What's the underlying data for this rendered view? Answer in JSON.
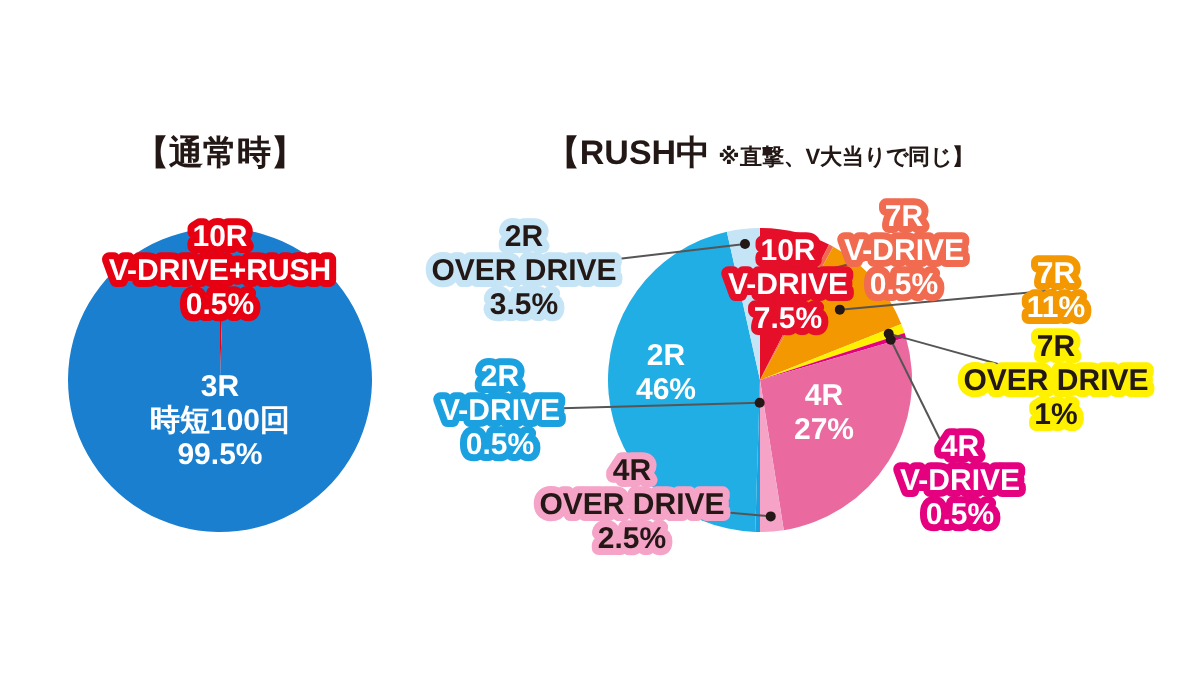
{
  "chart_data": [
    {
      "type": "pie",
      "title": "【通常時】",
      "categories": [
        "10R V-DRIVE+RUSH",
        "3R 時短100回"
      ],
      "values": [
        0.5,
        99.5
      ],
      "colors": [
        "#e60012",
        "#1a7fcf"
      ],
      "value_labels": [
        "0.5%",
        "99.5%"
      ]
    },
    {
      "type": "pie",
      "title": "【RUSH中",
      "subtitle": "※直撃、V大当りで同じ】",
      "categories": [
        "10R V-DRIVE",
        "7R V-DRIVE",
        "7R",
        "7R OVER DRIVE",
        "4R V-DRIVE",
        "4R",
        "4R OVER DRIVE",
        "2R V-DRIVE",
        "2R",
        "2R OVER DRIVE"
      ],
      "values": [
        7.5,
        0.5,
        11,
        1,
        0.5,
        27,
        2.5,
        0.5,
        46,
        3.5
      ],
      "colors": [
        "#e50f2a",
        "#f06b50",
        "#f39800",
        "#fff100",
        "#e4007f",
        "#ea6aa0",
        "#f5a3c7",
        "#1ba0e0",
        "#20aee5",
        "#c5e4f5"
      ],
      "value_labels": [
        "7.5%",
        "0.5%",
        "11%",
        "1%",
        "0.5%",
        "27%",
        "2.5%",
        "0.5%",
        "46%",
        "3.5%"
      ]
    }
  ]
}
